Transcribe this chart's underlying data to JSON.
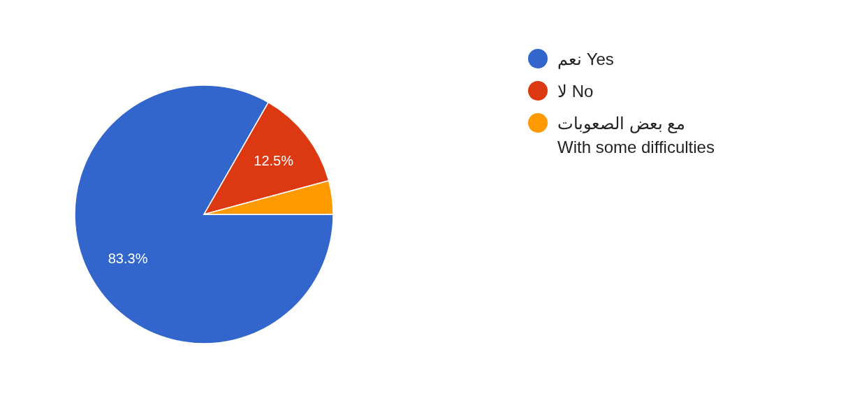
{
  "chart_data": {
    "type": "pie",
    "categories": [
      "نعم Yes",
      "لا No",
      "مع بعض الصعوبات\nWith some difficulties"
    ],
    "values": [
      83.3,
      12.5,
      4.2
    ],
    "colors": [
      "#3366cc",
      "#dc3912",
      "#ff9900"
    ],
    "value_labels": [
      "83.3%",
      "12.5%",
      null
    ],
    "legend": "right"
  }
}
